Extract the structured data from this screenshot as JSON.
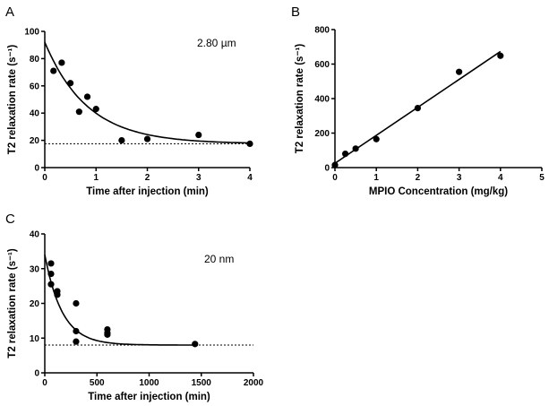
{
  "chart_data": [
    {
      "panel": "A",
      "type": "scatter",
      "annotation": "2.80 µm",
      "xlabel": "Time after injection (min)",
      "ylabel": "T2 relaxation rate (s⁻¹)",
      "xlim": [
        0,
        4
      ],
      "ylim": [
        0,
        100
      ],
      "xticks": [
        0,
        1,
        2,
        3,
        4
      ],
      "yticks": [
        0,
        20,
        40,
        60,
        80,
        100
      ],
      "points": [
        [
          0.17,
          71
        ],
        [
          0.33,
          77
        ],
        [
          0.5,
          62
        ],
        [
          0.67,
          41
        ],
        [
          0.83,
          52
        ],
        [
          1,
          43
        ],
        [
          1.5,
          20
        ],
        [
          2,
          21
        ],
        [
          3,
          24
        ],
        [
          4,
          17.5
        ]
      ],
      "fit": {
        "type": "exponential_decay",
        "y0": 92,
        "plateau": 17.5,
        "k": 1.2
      },
      "baseline": 17.5
    },
    {
      "panel": "B",
      "type": "scatter",
      "xlabel": "MPIO Concentration  (mg/kg)",
      "ylabel": "T2 relaxation rate (s⁻¹)",
      "xlim": [
        0,
        5
      ],
      "ylim": [
        0,
        800
      ],
      "xticks": [
        0,
        1,
        2,
        3,
        4,
        5
      ],
      "yticks": [
        0,
        200,
        400,
        600,
        800
      ],
      "points": [
        [
          0,
          15
        ],
        [
          0.25,
          80
        ],
        [
          0.5,
          110
        ],
        [
          1,
          165
        ],
        [
          2,
          345
        ],
        [
          3,
          555
        ],
        [
          4,
          648
        ]
      ],
      "fit": {
        "type": "linear",
        "intercept": 25,
        "slope": 162,
        "xrange": [
          0,
          4
        ]
      }
    },
    {
      "panel": "C",
      "type": "scatter",
      "annotation": "20 nm",
      "xlabel": "Time after injection (min)",
      "ylabel": "T2 relaxation rate (s⁻¹)",
      "xlim": [
        0,
        2000
      ],
      "ylim": [
        0,
        40
      ],
      "xticks": [
        0,
        500,
        1000,
        1500,
        2000
      ],
      "yticks": [
        0,
        10,
        20,
        30,
        40
      ],
      "points": [
        [
          60,
          31.5
        ],
        [
          60,
          28.5
        ],
        [
          60,
          25.5
        ],
        [
          120,
          23.5
        ],
        [
          120,
          22.5
        ],
        [
          300,
          20
        ],
        [
          300,
          12
        ],
        [
          300,
          9
        ],
        [
          600,
          12.5
        ],
        [
          600,
          11.5
        ],
        [
          600,
          11
        ],
        [
          1440,
          8.3
        ]
      ],
      "fit": {
        "type": "exponential_decay",
        "y0": 34,
        "plateau": 8,
        "k": 0.006,
        "xrange": [
          0,
          1440
        ]
      },
      "baseline": 8
    }
  ]
}
